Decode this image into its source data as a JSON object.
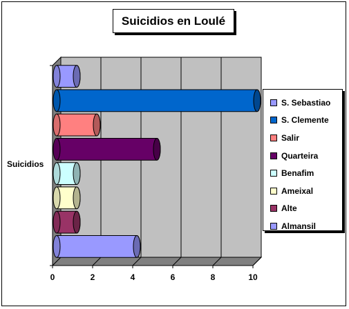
{
  "chart_data": {
    "type": "bar",
    "orientation": "horizontal",
    "title": "Suicidios en Loulé",
    "category_label": "Suicidios",
    "xlim": [
      0,
      10
    ],
    "xticks": [
      0,
      2,
      4,
      6,
      8,
      10
    ],
    "grid": true,
    "legend_position": "right",
    "series": [
      {
        "name": "S. Sebastiao",
        "value": 1,
        "color": "#9999ff"
      },
      {
        "name": "S. Clemente",
        "value": 10,
        "color": "#0066cc"
      },
      {
        "name": "Salir",
        "value": 2,
        "color": "#ff8080"
      },
      {
        "name": "Quarteira",
        "value": 5,
        "color": "#660066"
      },
      {
        "name": "Benafim",
        "value": 1,
        "color": "#ccffff"
      },
      {
        "name": "Ameixal",
        "value": 1,
        "color": "#ffffcc"
      },
      {
        "name": "Alte",
        "value": 1,
        "color": "#993366"
      },
      {
        "name": "Almansil",
        "value": 4,
        "color": "#9999ff"
      }
    ]
  }
}
